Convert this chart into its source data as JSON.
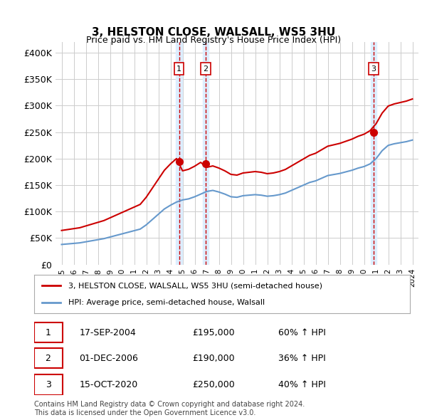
{
  "title": "3, HELSTON CLOSE, WALSALL, WS5 3HU",
  "subtitle": "Price paid vs. HM Land Registry's House Price Index (HPI)",
  "ylabel": "",
  "ylim": [
    0,
    420000
  ],
  "yticks": [
    0,
    50000,
    100000,
    150000,
    200000,
    250000,
    300000,
    350000,
    400000
  ],
  "ytick_labels": [
    "£0",
    "£50K",
    "£100K",
    "£150K",
    "£200K",
    "£250K",
    "£300K",
    "£350K",
    "£400K"
  ],
  "sale_dates": [
    "2004-09-17",
    "2006-12-01",
    "2020-10-15"
  ],
  "sale_prices": [
    195000,
    190000,
    250000
  ],
  "transaction_labels": [
    "1",
    "2",
    "3"
  ],
  "legend_red": "3, HELSTON CLOSE, WALSALL, WS5 3HU (semi-detached house)",
  "legend_blue": "HPI: Average price, semi-detached house, Walsall",
  "table_rows": [
    {
      "num": "1",
      "date": "17-SEP-2004",
      "price": "£195,000",
      "hpi": "60% ↑ HPI"
    },
    {
      "num": "2",
      "date": "01-DEC-2006",
      "price": "£190,000",
      "hpi": "36% ↑ HPI"
    },
    {
      "num": "3",
      "date": "15-OCT-2020",
      "price": "£250,000",
      "hpi": "40% ↑ HPI"
    }
  ],
  "footnote": "Contains HM Land Registry data © Crown copyright and database right 2024.\nThis data is licensed under the Open Government Licence v3.0.",
  "red_color": "#cc0000",
  "blue_color": "#6699cc",
  "vline_color": "#cc0000",
  "shade_color": "#ddeeff",
  "grid_color": "#cccccc",
  "background_color": "#ffffff"
}
